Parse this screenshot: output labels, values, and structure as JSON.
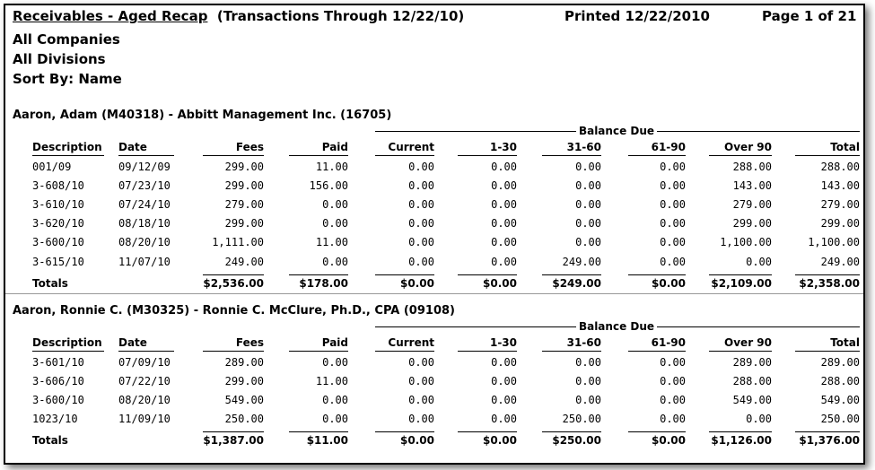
{
  "report": {
    "title": "Receivables - Aged Recap",
    "subtitle": "(Transactions Through 12/22/10)",
    "printed": "Printed 12/22/2010",
    "page": "Page 1 of 21"
  },
  "filters": [
    "All Companies",
    "All Divisions",
    "Sort By:  Name"
  ],
  "balance_due_label": "Balance Due",
  "columns": [
    "Description",
    "Date",
    "Fees",
    "Paid",
    "Current",
    "1-30",
    "31-60",
    "61-90",
    "Over 90",
    "Total"
  ],
  "totals_label": "Totals",
  "clients": [
    {
      "name": "Aaron, Adam (M40318) - Abbitt Management Inc. (16705)",
      "rows": [
        [
          "001/09",
          "09/12/09",
          "299.00",
          "11.00",
          "0.00",
          "0.00",
          "0.00",
          "0.00",
          "288.00",
          "288.00"
        ],
        [
          "3-608/10",
          "07/23/10",
          "299.00",
          "156.00",
          "0.00",
          "0.00",
          "0.00",
          "0.00",
          "143.00",
          "143.00"
        ],
        [
          "3-610/10",
          "07/24/10",
          "279.00",
          "0.00",
          "0.00",
          "0.00",
          "0.00",
          "0.00",
          "279.00",
          "279.00"
        ],
        [
          "3-620/10",
          "08/18/10",
          "299.00",
          "0.00",
          "0.00",
          "0.00",
          "0.00",
          "0.00",
          "299.00",
          "299.00"
        ],
        [
          "3-600/10",
          "08/20/10",
          "1,111.00",
          "11.00",
          "0.00",
          "0.00",
          "0.00",
          "0.00",
          "1,100.00",
          "1,100.00"
        ],
        [
          "3-615/10",
          "11/07/10",
          "249.00",
          "0.00",
          "0.00",
          "0.00",
          "249.00",
          "0.00",
          "0.00",
          "249.00"
        ]
      ],
      "totals": [
        "$2,536.00",
        "$178.00",
        "$0.00",
        "$0.00",
        "$249.00",
        "$0.00",
        "$2,109.00",
        "$2,358.00"
      ]
    },
    {
      "name": "Aaron, Ronnie C. (M30325) - Ronnie C. McClure, Ph.D., CPA (09108)",
      "rows": [
        [
          "3-601/10",
          "07/09/10",
          "289.00",
          "0.00",
          "0.00",
          "0.00",
          "0.00",
          "0.00",
          "289.00",
          "289.00"
        ],
        [
          "3-606/10",
          "07/22/10",
          "299.00",
          "11.00",
          "0.00",
          "0.00",
          "0.00",
          "0.00",
          "288.00",
          "288.00"
        ],
        [
          "3-600/10",
          "08/20/10",
          "549.00",
          "0.00",
          "0.00",
          "0.00",
          "0.00",
          "0.00",
          "549.00",
          "549.00"
        ],
        [
          "1023/10",
          "11/09/10",
          "250.00",
          "0.00",
          "0.00",
          "0.00",
          "250.00",
          "0.00",
          "0.00",
          "250.00"
        ]
      ],
      "totals": [
        "$1,387.00",
        "$11.00",
        "$0.00",
        "$0.00",
        "$250.00",
        "$0.00",
        "$1,126.00",
        "$1,376.00"
      ]
    }
  ]
}
